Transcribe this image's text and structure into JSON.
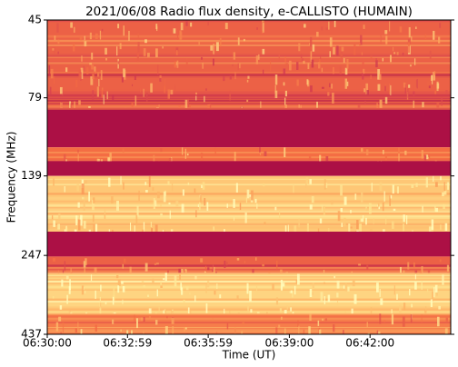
{
  "chart_data": {
    "type": "heatmap",
    "title": "2021/06/08  Radio flux density, e-CALLISTO (HUMAIN)",
    "xlabel": "Time (UT)",
    "ylabel": "Frequency (MHz)",
    "xlim": [
      23400,
      24300
    ],
    "xticks": [
      {
        "value": 23400,
        "label": "06:30:00"
      },
      {
        "value": 23579,
        "label": "06:32:59"
      },
      {
        "value": 23759,
        "label": "06:35:59"
      },
      {
        "value": 23940,
        "label": "06:39:00"
      },
      {
        "value": 24120,
        "label": "06:42:00"
      }
    ],
    "ylim": [
      45,
      437
    ],
    "ylog": true,
    "yinverted": true,
    "yticks": [
      45,
      79,
      139,
      247,
      437
    ],
    "bands": [
      45,
      85,
      113,
      125,
      139,
      208,
      249,
      280,
      376,
      437
    ],
    "values": [
      0.35,
      0.05,
      0.4,
      0.05,
      0.7,
      0.05,
      0.35,
      0.75,
      0.45
    ],
    "colormap": [
      "#9e0142",
      "#d53e4f",
      "#f46d43",
      "#fdae61",
      "#fee08b",
      "#ffffbf"
    ]
  }
}
